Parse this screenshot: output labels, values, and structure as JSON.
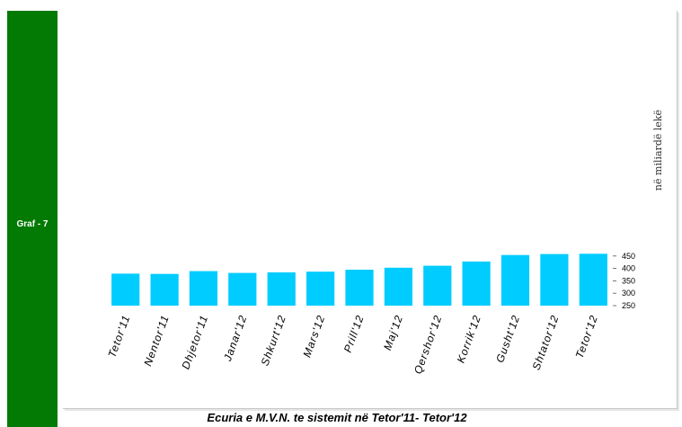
{
  "sidebar": {
    "label": "Graf - 7",
    "color": "#037a03"
  },
  "chart_data": {
    "type": "bar",
    "title": "Ecuria e M.V.N. te sistemit në Tetor'11- Tetor'12",
    "xlabel": "",
    "ylabel": "në miliardë lekë",
    "categories": [
      "Tetor'11",
      "Nentor'11",
      "Dhjetor'11",
      "Janar'12",
      "Shkurt'12",
      "Mars'12",
      "Prill'12",
      "Maj'12",
      "Qershor'12",
      "Korrik'12",
      "Gusht'12",
      "Shtator'12",
      "Tetor'12"
    ],
    "values": [
      379,
      378,
      389,
      382,
      384,
      387,
      395,
      403,
      411,
      428,
      454,
      458,
      459
    ],
    "ylim": [
      250,
      470
    ],
    "yticks": [
      250,
      300,
      350,
      400,
      450
    ],
    "bar_color": "#00ccff",
    "grid": false,
    "legend": "none"
  }
}
